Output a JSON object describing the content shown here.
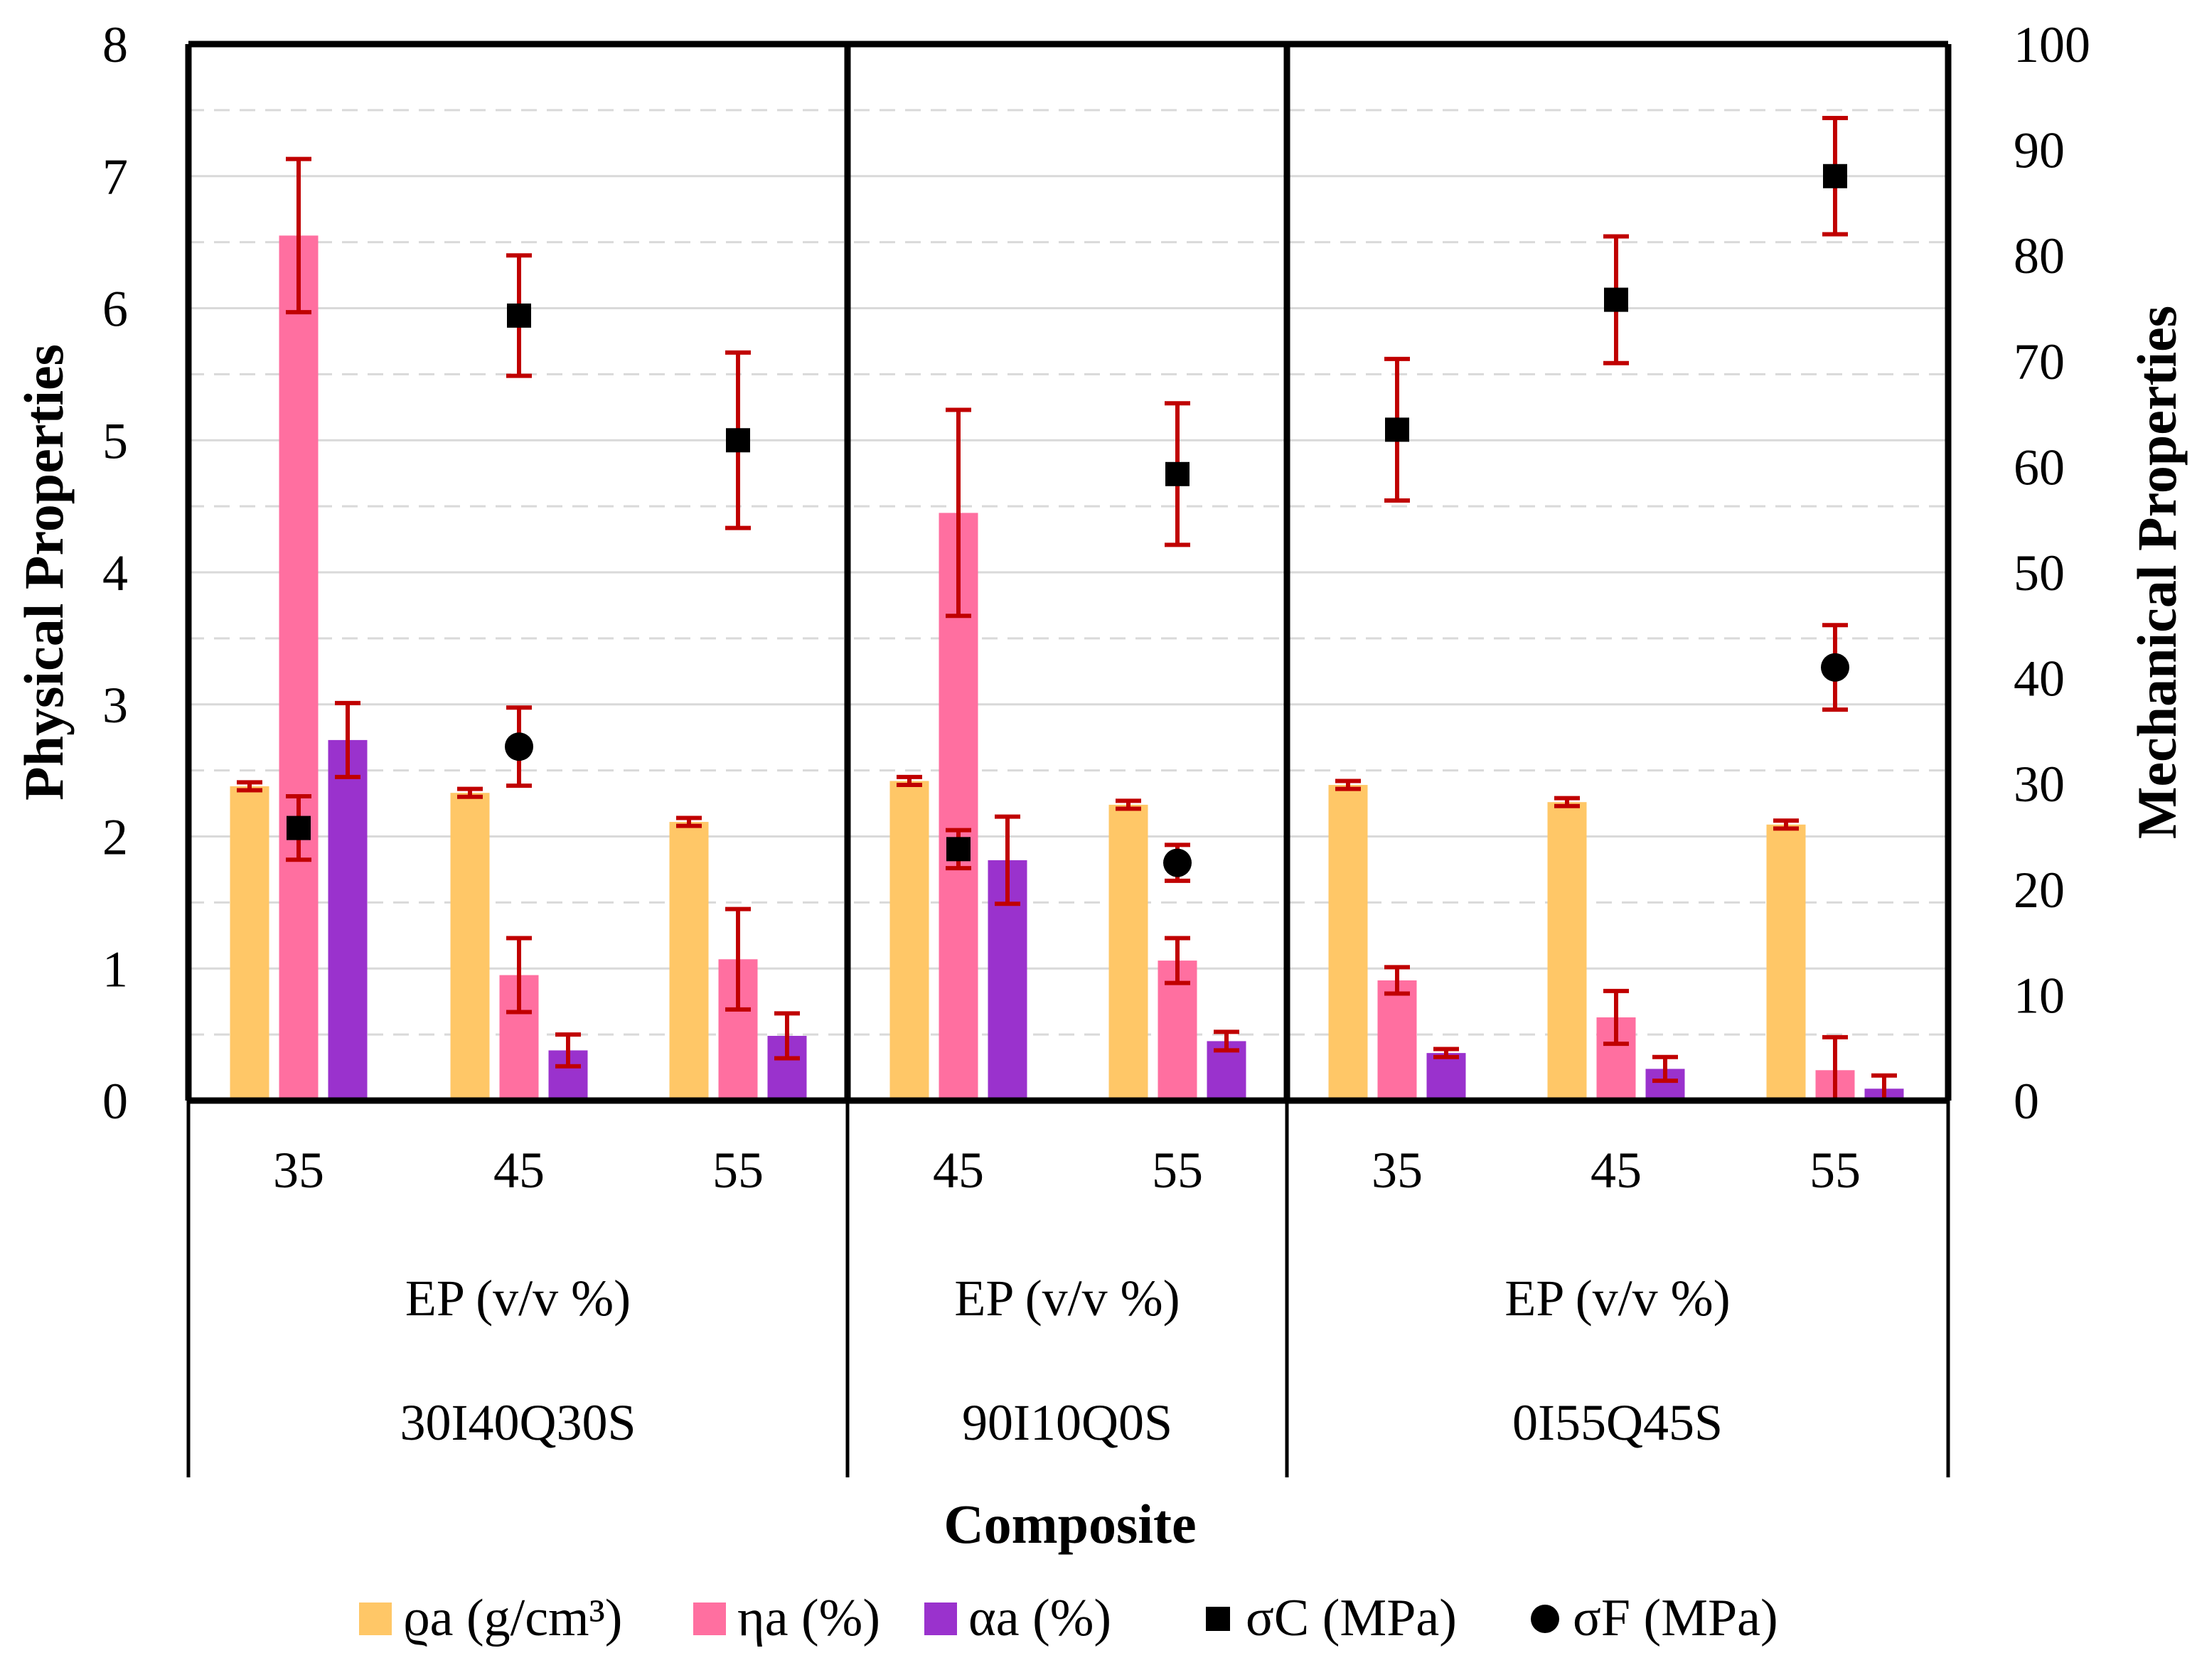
{
  "chart_data": {
    "type": "bar",
    "left_axis": {
      "title": "Physical Properties",
      "min": 0,
      "max": 8,
      "ticks": [
        "0",
        "1",
        "2",
        "3",
        "4",
        "5",
        "6",
        "7",
        "8"
      ]
    },
    "right_axis": {
      "title": "Mechanical Properties",
      "min": 0,
      "max": 100,
      "ticks": [
        "0",
        "10",
        "20",
        "30",
        "40",
        "50",
        "60",
        "70",
        "80",
        "90",
        "100"
      ]
    },
    "x_title": "Composite",
    "ep_label": "EP (v/v %)",
    "groups": [
      {
        "name": "30I40Q30S",
        "categories": [
          {
            "label": "35",
            "rho": 2.38,
            "eta": 6.55,
            "eta_err": 0.58,
            "alpha": 2.73,
            "alpha_err": 0.28,
            "sigmaC": 25.8,
            "sigmaC_err": 3.0
          },
          {
            "label": "45",
            "rho": 2.33,
            "eta": 0.95,
            "eta_err": 0.28,
            "alpha": 0.38,
            "alpha_err": 0.12,
            "sigmaC": 74.3,
            "sigmaC_err": 5.7,
            "sigmaF": 33.5,
            "sigmaF_err": 3.7
          },
          {
            "label": "55",
            "rho": 2.11,
            "eta": 1.07,
            "eta_err": 0.38,
            "alpha": 0.49,
            "alpha_err": 0.17,
            "sigmaC": 62.5,
            "sigmaC_err": 8.3
          }
        ]
      },
      {
        "name": "90I10Q0S",
        "categories": [
          {
            "label": "45",
            "rho": 2.42,
            "eta": 4.45,
            "eta_err": 0.78,
            "alpha": 1.82,
            "alpha_err": 0.33,
            "sigmaC": 23.8,
            "sigmaC_err": 1.8
          },
          {
            "label": "55",
            "rho": 2.24,
            "eta": 1.06,
            "eta_err": 0.17,
            "alpha": 0.45,
            "alpha_err": 0.07,
            "sigmaC": 59.3,
            "sigmaC_err": 6.7,
            "sigmaF": 22.5,
            "sigmaF_err": 1.7
          }
        ]
      },
      {
        "name": "0I55Q45S",
        "categories": [
          {
            "label": "35",
            "rho": 2.39,
            "eta": 0.91,
            "eta_err": 0.1,
            "alpha": 0.36,
            "alpha_err": 0.03,
            "sigmaC": 63.5,
            "sigmaC_err": 6.7
          },
          {
            "label": "45",
            "rho": 2.26,
            "eta": 0.63,
            "eta_err": 0.2,
            "alpha": 0.24,
            "alpha_err": 0.09,
            "sigmaC": 75.8,
            "sigmaC_err": 6.0
          },
          {
            "label": "55",
            "rho": 2.09,
            "eta": 0.23,
            "eta_err": 0.25,
            "alpha": 0.09,
            "alpha_err": 0.1,
            "sigmaC": 87.5,
            "sigmaC_err": 5.5,
            "sigmaF": 41.0,
            "sigmaF_err": 4.0
          }
        ]
      }
    ],
    "series": [
      {
        "key": "rho",
        "name": "ϱa (g/cm³)",
        "kind": "bar",
        "axis": "left",
        "color": "#FFC767"
      },
      {
        "key": "eta",
        "name": "ηa (%)",
        "kind": "bar",
        "axis": "left",
        "color": "#FF6FA0"
      },
      {
        "key": "alpha",
        "name": "αa (%)",
        "kind": "bar",
        "axis": "left",
        "color": "#9A32CD"
      },
      {
        "key": "sigmaC",
        "name": "σC (MPa)",
        "kind": "square",
        "axis": "right",
        "color": "#000000"
      },
      {
        "key": "sigmaF",
        "name": "σF (MPa)",
        "kind": "circle",
        "axis": "right",
        "color": "#000000"
      }
    ],
    "error_bar_color": "#C00000",
    "rho_err": 0.03,
    "gridlines": true,
    "legend_position": "bottom"
  }
}
